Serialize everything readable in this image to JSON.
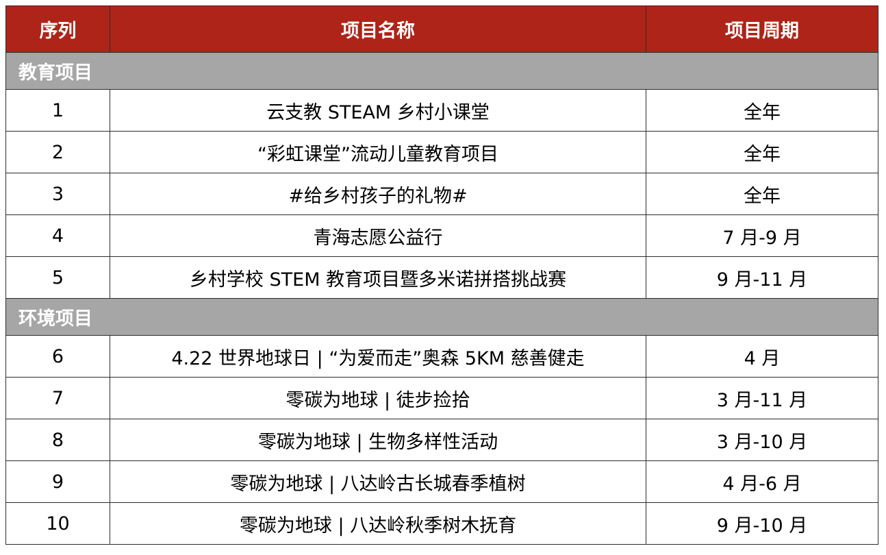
{
  "header": {
    "col1": "序列",
    "col2": "项目名称",
    "col3": "项目周期"
  },
  "colors": {
    "header_bg": "#ae2418",
    "section_bg": "#a6a6a6"
  },
  "sections": [
    {
      "title": "教育项目",
      "rows": [
        {
          "no": "1",
          "name": "云支教 STEAM 乡村小课堂",
          "period": "全年"
        },
        {
          "no": "2",
          "name": "“彩虹课堂”流动儿童教育项目",
          "period": "全年"
        },
        {
          "no": "3",
          "name": "#给乡村孩子的礼物#",
          "period": "全年"
        },
        {
          "no": "4",
          "name": "青海志愿公益行",
          "period": "7 月-9 月"
        },
        {
          "no": "5",
          "name": "乡村学校 STEM 教育项目暨多米诺拼搭挑战赛",
          "period": "9 月-11 月"
        }
      ]
    },
    {
      "title": "环境项目",
      "rows": [
        {
          "no": "6",
          "name": "4.22 世界地球日 | “为爱而走”奥森 5KM 慈善健走",
          "period": "4 月"
        },
        {
          "no": "7",
          "name": "零碳为地球 | 徒步捡拾",
          "period": "3 月-11 月"
        },
        {
          "no": "8",
          "name": "零碳为地球 | 生物多样性活动",
          "period": "3 月-10 月"
        },
        {
          "no": "9",
          "name": "零碳为地球 | 八达岭古长城春季植树",
          "period": "4 月-6 月"
        },
        {
          "no": "10",
          "name": "零碳为地球 | 八达岭秋季树木抚育",
          "period": "9 月-10 月"
        }
      ]
    }
  ]
}
